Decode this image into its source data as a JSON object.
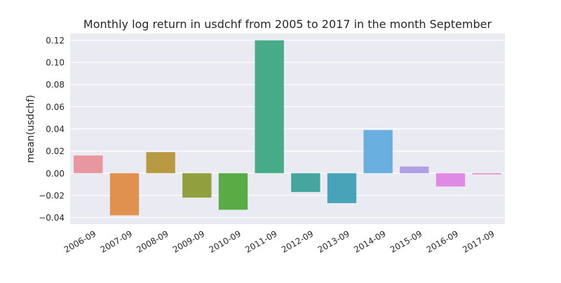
{
  "chart_data": {
    "type": "bar",
    "title": "Monthly log return in usdchf from 2005 to 2017 in the month September",
    "xlabel": "",
    "ylabel": "mean(usdchf)",
    "ylim": [
      -0.046,
      0.126
    ],
    "yticks": [
      "−0.04",
      "−0.02",
      "0.00",
      "0.02",
      "0.04",
      "0.06",
      "0.08",
      "0.10",
      "0.12"
    ],
    "grid": true,
    "categories": [
      "2006-09",
      "2007-09",
      "2008-09",
      "2009-09",
      "2010-09",
      "2011-09",
      "2012-09",
      "2013-09",
      "2014-09",
      "2015-09",
      "2016-09",
      "2017-09"
    ],
    "values": [
      0.016,
      -0.038,
      0.019,
      -0.022,
      -0.033,
      0.12,
      -0.017,
      -0.027,
      0.039,
      0.006,
      -0.012,
      -0.001
    ],
    "colors": [
      "#e8969f",
      "#e0904f",
      "#b89a43",
      "#929f3f",
      "#59ab45",
      "#47ab8a",
      "#44a69c",
      "#48a3b8",
      "#68aede",
      "#b19fe5",
      "#df8ae5",
      "#e887b7"
    ],
    "background": "#eaeaf2"
  }
}
